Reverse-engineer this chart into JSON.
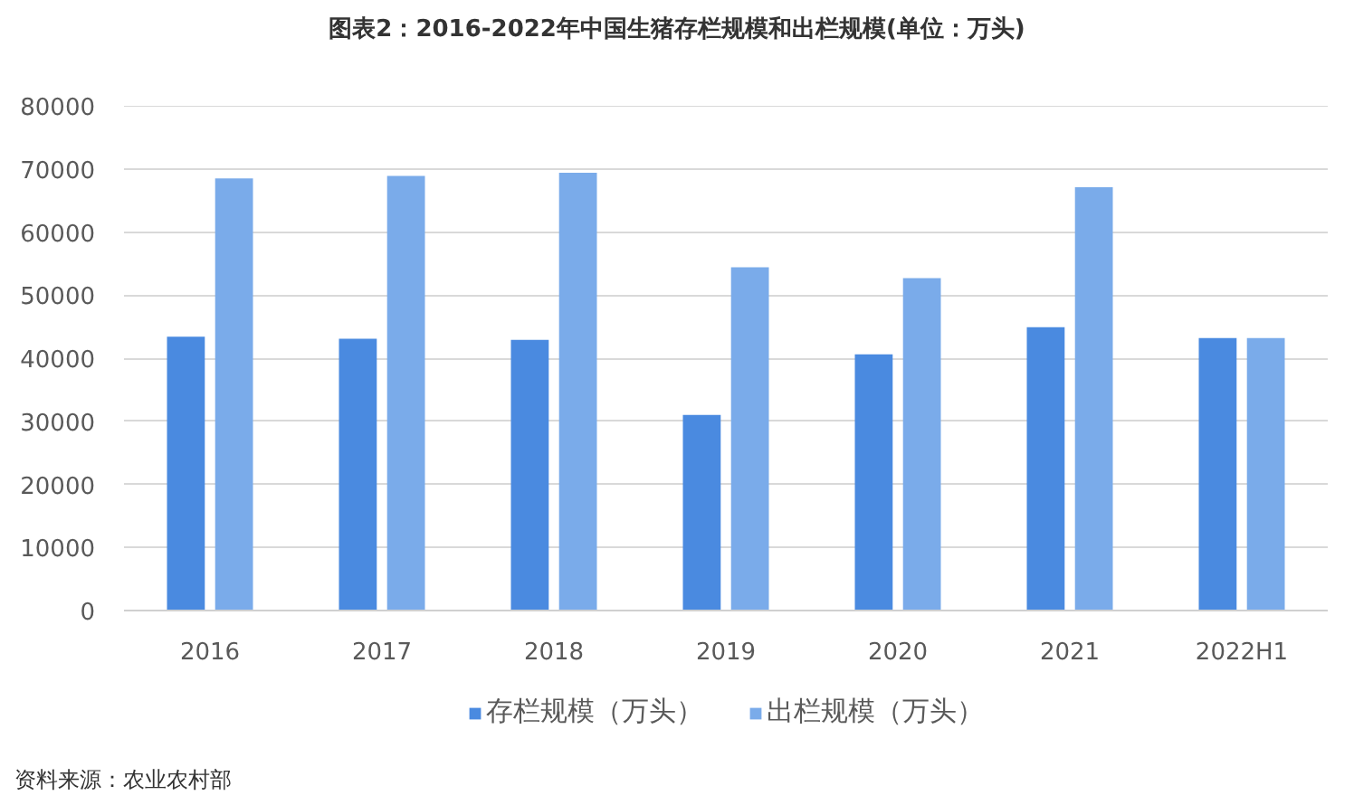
{
  "chart_data": {
    "type": "bar",
    "title": "图表2：2016-2022年中国生猪存栏规模和出栏规模(单位：万头)",
    "categories": [
      "2016",
      "2017",
      "2018",
      "2019",
      "2020",
      "2021",
      "2022H1"
    ],
    "series": [
      {
        "name": "存栏规模（万头）",
        "color": "#4a8ae0",
        "values": [
          43400,
          43100,
          42900,
          31000,
          40600,
          44900,
          43200
        ]
      },
      {
        "name": "出栏规模（万头）",
        "color": "#7aabea",
        "values": [
          68500,
          68900,
          69400,
          54400,
          52700,
          67100,
          43200
        ]
      }
    ],
    "ylim": [
      0,
      80000
    ],
    "yticks": [
      0,
      10000,
      20000,
      30000,
      40000,
      50000,
      60000,
      70000,
      80000
    ],
    "grid": "y",
    "legend": "bottom",
    "annotations": [
      "资料来源：农业农村部"
    ]
  }
}
